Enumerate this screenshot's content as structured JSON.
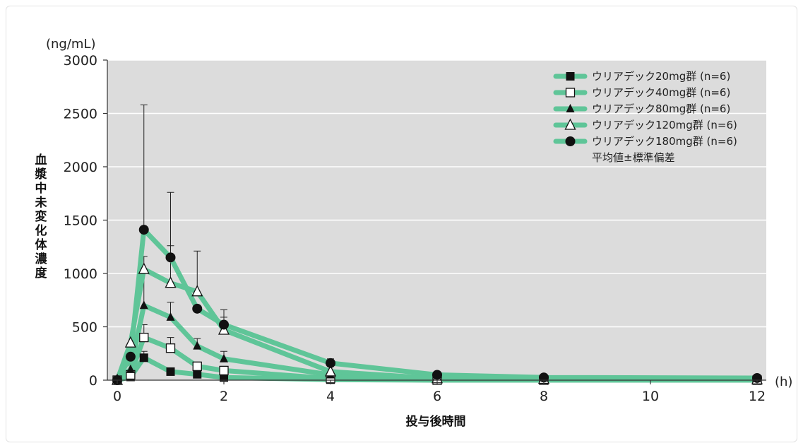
{
  "chart_data": {
    "type": "line",
    "ylabel_unit": "(ng/mL)",
    "xlabel_unit": "(h)",
    "ylabel": "血漿中未変化体濃度",
    "xlabel": "投与後時間",
    "xlim": [
      0,
      12
    ],
    "ylim": [
      0,
      3000
    ],
    "x_ticks": [
      0,
      2,
      4,
      6,
      8,
      10,
      12
    ],
    "y_ticks": [
      0,
      500,
      1000,
      1500,
      2000,
      2500,
      3000
    ],
    "grid": "horizontal",
    "legend_position": "top-right",
    "legend_note": "平均値±標準偏差",
    "colors": {
      "line": "#5fc598",
      "plot_bg": "#dcdcdc",
      "marker": "#111111"
    },
    "series": [
      {
        "name": "ウリアデック20mg群 (n=6)",
        "marker": "filled-square",
        "x": [
          0,
          0.25,
          0.5,
          1,
          1.5,
          2,
          4,
          6,
          8,
          12
        ],
        "y": [
          0,
          30,
          210,
          80,
          55,
          25,
          5,
          0,
          0,
          0
        ],
        "sd": [
          0,
          15,
          60,
          20,
          15,
          10,
          0,
          0,
          0,
          0
        ]
      },
      {
        "name": "ウリアデック40mg群 (n=6)",
        "marker": "open-square",
        "x": [
          0,
          0.25,
          0.5,
          1,
          1.5,
          2,
          4,
          6,
          8,
          12
        ],
        "y": [
          0,
          50,
          400,
          300,
          130,
          90,
          15,
          0,
          0,
          0
        ],
        "sd": [
          0,
          20,
          120,
          100,
          40,
          40,
          0,
          0,
          0,
          0
        ]
      },
      {
        "name": "ウリアデック80mg群 (n=6)",
        "marker": "filled-triangle",
        "x": [
          0,
          0.25,
          0.5,
          1,
          1.5,
          2,
          4,
          6,
          8,
          12
        ],
        "y": [
          0,
          100,
          700,
          590,
          320,
          200,
          50,
          10,
          5,
          0
        ],
        "sd": [
          0,
          40,
          300,
          140,
          70,
          70,
          0,
          0,
          0,
          0
        ]
      },
      {
        "name": "ウリアデック120mg群 (n=6)",
        "marker": "open-triangle",
        "x": [
          0,
          0.25,
          0.5,
          1,
          1.5,
          2,
          4,
          6,
          8,
          12
        ],
        "y": [
          0,
          350,
          1040,
          910,
          830,
          470,
          80,
          15,
          10,
          5
        ],
        "sd": [
          0,
          0,
          120,
          350,
          380,
          120,
          0,
          0,
          0,
          0
        ]
      },
      {
        "name": "ウリアデック180mg群 (n=6)",
        "marker": "filled-circle",
        "x": [
          0,
          0.25,
          0.5,
          1,
          1.5,
          2,
          4,
          6,
          8,
          12
        ],
        "y": [
          0,
          220,
          1410,
          1150,
          670,
          520,
          160,
          50,
          25,
          20
        ],
        "sd": [
          0,
          0,
          1170,
          610,
          0,
          140,
          40,
          0,
          0,
          0
        ]
      }
    ]
  }
}
